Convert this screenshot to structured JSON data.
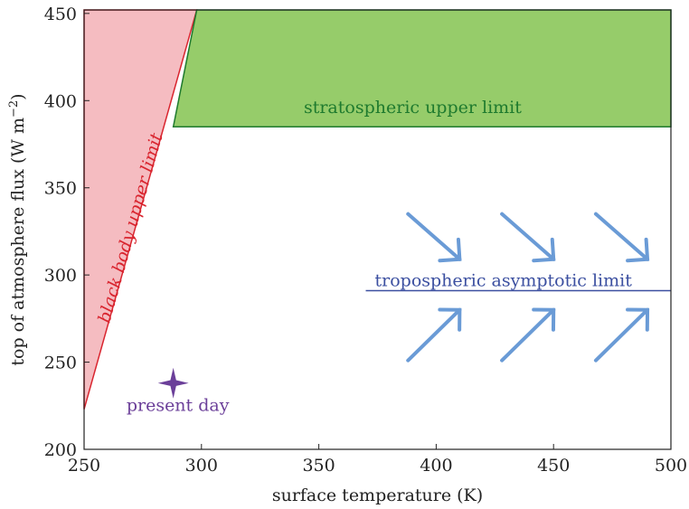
{
  "chart_data": {
    "type": "area",
    "xlabel": "surface temperature (K)",
    "ylabel": "top of atmosphere flux (W m",
    "ylabel_superscript": "−2",
    "ylabel_close": ")",
    "xlim": [
      250,
      500
    ],
    "ylim": [
      200,
      452
    ],
    "x_ticks": [
      250,
      300,
      350,
      400,
      450,
      500
    ],
    "y_ticks": [
      200,
      250,
      300,
      350,
      400,
      450
    ],
    "grid": false,
    "regions": [
      {
        "name": "black body upper limit",
        "label": "black body upper limit",
        "color": "#f5bcc1",
        "edge_color": "#d9252f",
        "polygon": [
          [
            250,
            223
          ],
          [
            250,
            452
          ],
          [
            298,
            452
          ]
        ]
      },
      {
        "name": "stratospheric upper limit",
        "label": "stratospheric upper limit",
        "color": "#96cc6a",
        "edge_color": "#1e7a2e",
        "polygon": [
          [
            288,
            385
          ],
          [
            298,
            452
          ],
          [
            500,
            452
          ],
          [
            500,
            385
          ]
        ]
      }
    ],
    "lines": [
      {
        "name": "tropospheric asymptotic limit",
        "label": "tropospheric asymptotic limit",
        "color": "#3b4fa0",
        "x": [
          370,
          500
        ],
        "y": [
          291,
          291
        ]
      }
    ],
    "points": [
      {
        "name": "present day",
        "label": "present day",
        "color": "#6b3f99",
        "marker": "star",
        "x": 288,
        "y": 238
      }
    ],
    "arrows": {
      "color": "#6a9bd6",
      "items": [
        {
          "from": [
            388,
            335
          ],
          "to": [
            410,
            309
          ]
        },
        {
          "from": [
            428,
            335
          ],
          "to": [
            450,
            309
          ]
        },
        {
          "from": [
            468,
            335
          ],
          "to": [
            490,
            309
          ]
        },
        {
          "from": [
            388,
            251
          ],
          "to": [
            410,
            280
          ]
        },
        {
          "from": [
            428,
            251
          ],
          "to": [
            450,
            280
          ]
        },
        {
          "from": [
            468,
            251
          ],
          "to": [
            490,
            280
          ]
        }
      ]
    }
  }
}
